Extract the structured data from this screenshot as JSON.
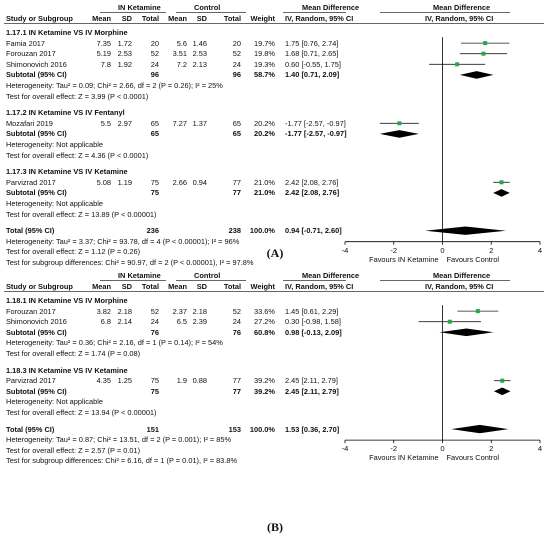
{
  "panels": [
    {
      "label": "(A)",
      "header": {
        "group1": "IN Ketamine",
        "group2": "Control",
        "md_title": "Mean Difference",
        "md_title_plot": "Mean Difference",
        "col_study": "Study or Subgroup",
        "col_mean1": "Mean",
        "col_sd1": "SD",
        "col_total1": "Total",
        "col_mean2": "Mean",
        "col_sd2": "SD",
        "col_total2": "Total",
        "col_weight": "Weight",
        "col_md": "IV, Random, 95% CI",
        "col_md_plot": "IV, Random, 95% CI"
      },
      "rows": [
        {
          "kind": "title",
          "text": "1.17.1 IN Ketamine VS IV Morphine"
        },
        {
          "kind": "study",
          "name": "Famia 2017",
          "m1": "7.35",
          "sd1": "1.72",
          "n1": "20",
          "m2": "5.6",
          "sd2": "1.46",
          "n2": "20",
          "w": "19.7%",
          "ci": "1.75 [0.76, 2.74]",
          "est": 1.75,
          "lo": 0.76,
          "hi": 2.74
        },
        {
          "kind": "study",
          "name": "Forouzan 2017",
          "m1": "5.19",
          "sd1": "2.53",
          "n1": "52",
          "m2": "3.51",
          "sd2": "2.53",
          "n2": "52",
          "w": "19.8%",
          "ci": "1.68 [0.71, 2.65]",
          "est": 1.68,
          "lo": 0.71,
          "hi": 2.65
        },
        {
          "kind": "study",
          "name": "Shimonovich 2016",
          "m1": "7.8",
          "sd1": "1.92",
          "n1": "24",
          "m2": "7.2",
          "sd2": "2.13",
          "n2": "24",
          "w": "19.3%",
          "ci": "0.60 [-0.55, 1.75]",
          "est": 0.6,
          "lo": -0.55,
          "hi": 1.75
        },
        {
          "kind": "subtotal",
          "name": "Subtotal (95% CI)",
          "n1": "96",
          "n2": "96",
          "w": "58.7%",
          "ci": "1.40 [0.71, 2.09]",
          "est": 1.4,
          "lo": 0.71,
          "hi": 2.09
        },
        {
          "kind": "note",
          "text": "Heterogeneity: Tau² = 0.09; Chi² = 2.66, df = 2 (P = 0.26); I² = 25%"
        },
        {
          "kind": "note",
          "text": "Test for overall effect: Z = 3.99 (P < 0.0001)"
        },
        {
          "kind": "gap"
        },
        {
          "kind": "title",
          "text": "1.17.2 IN Ketamine VS IV Fentanyl"
        },
        {
          "kind": "study",
          "name": "Mozafari 2019",
          "m1": "5.5",
          "sd1": "2.97",
          "n1": "65",
          "m2": "7.27",
          "sd2": "1.37",
          "n2": "65",
          "w": "20.2%",
          "ci": "-1.77 [-2.57, -0.97]",
          "est": -1.77,
          "lo": -2.57,
          "hi": -0.97
        },
        {
          "kind": "subtotal",
          "name": "Subtotal (95% CI)",
          "n1": "65",
          "n2": "65",
          "w": "20.2%",
          "ci": "-1.77 [-2.57, -0.97]",
          "est": -1.77,
          "lo": -2.57,
          "hi": -0.97
        },
        {
          "kind": "note",
          "text": "Heterogeneity: Not applicable"
        },
        {
          "kind": "note",
          "text": "Test for overall effect: Z = 4.36 (P < 0.0001)"
        },
        {
          "kind": "gap"
        },
        {
          "kind": "title",
          "text": "1.17.3 IN Ketamine VS IV Ketamine"
        },
        {
          "kind": "study",
          "name": "Parvizrad 2017",
          "m1": "5.08",
          "sd1": "1.19",
          "n1": "75",
          "m2": "2.66",
          "sd2": "0.94",
          "n2": "77",
          "w": "21.0%",
          "ci": "2.42 [2.08, 2.76]",
          "est": 2.42,
          "lo": 2.08,
          "hi": 2.76
        },
        {
          "kind": "subtotal",
          "name": "Subtotal (95% CI)",
          "n1": "75",
          "n2": "77",
          "w": "21.0%",
          "ci": "2.42 [2.08, 2.76]",
          "est": 2.42,
          "lo": 2.08,
          "hi": 2.76
        },
        {
          "kind": "note",
          "text": "Heterogeneity: Not applicable"
        },
        {
          "kind": "note",
          "text": "Test for overall effect: Z = 13.89 (P < 0.00001)"
        },
        {
          "kind": "gap"
        },
        {
          "kind": "total",
          "name": "Total (95% CI)",
          "n1": "236",
          "n2": "238",
          "w": "100.0%",
          "ci": "0.94 [-0.71, 2.60]",
          "est": 0.94,
          "lo": -0.71,
          "hi": 2.6
        },
        {
          "kind": "note",
          "text": "Heterogeneity: Tau² = 3.37; Chi² = 93.78, df = 4 (P < 0.00001); I² = 96%"
        },
        {
          "kind": "note",
          "text": "Test for overall effect: Z = 1.12 (P = 0.26)"
        },
        {
          "kind": "note",
          "text": "Test for subgroup differences: Chi² = 90.97, df = 2 (P < 0.00001), I² = 97.8%"
        }
      ],
      "axis": {
        "ticks": [
          "-4",
          "-2",
          "0",
          "2",
          "4"
        ],
        "favours_left": "Favours IN Ketamine",
        "favours_right": "Favours Control"
      }
    },
    {
      "label": "(B)",
      "header": {
        "group1": "IN Ketamine",
        "group2": "Control",
        "md_title": "Mean Difference",
        "md_title_plot": "Mean Difference",
        "col_study": "Study or Subgroup",
        "col_mean1": "Mean",
        "col_sd1": "SD",
        "col_total1": "Total",
        "col_mean2": "Mean",
        "col_sd2": "SD",
        "col_total2": "Total",
        "col_weight": "Weight",
        "col_md": "IV, Random, 95% CI",
        "col_md_plot": "IV, Random, 95% CI"
      },
      "rows": [
        {
          "kind": "title",
          "text": "1.18.1 IN Ketamine VS IV Morphine"
        },
        {
          "kind": "study",
          "name": "Forouzan 2017",
          "m1": "3.82",
          "sd1": "2.18",
          "n1": "52",
          "m2": "2.37",
          "sd2": "2.18",
          "n2": "52",
          "w": "33.6%",
          "ci": "1.45 [0.61, 2.29]",
          "est": 1.45,
          "lo": 0.61,
          "hi": 2.29
        },
        {
          "kind": "study",
          "name": "Shimonovich 2016",
          "m1": "6.8",
          "sd1": "2.14",
          "n1": "24",
          "m2": "6.5",
          "sd2": "2.39",
          "n2": "24",
          "w": "27.2%",
          "ci": "0.30 [-0.98, 1.58]",
          "est": 0.3,
          "lo": -0.98,
          "hi": 1.58
        },
        {
          "kind": "subtotal",
          "name": "Subtotal (95% CI)",
          "n1": "76",
          "n2": "76",
          "w": "60.8%",
          "ci": "0.98 [-0.13, 2.09]",
          "est": 0.98,
          "lo": -0.13,
          "hi": 2.09
        },
        {
          "kind": "note",
          "text": "Heterogeneity: Tau² = 0.36; Chi² = 2.16, df = 1 (P = 0.14); I² = 54%"
        },
        {
          "kind": "note",
          "text": "Test for overall effect: Z = 1.74 (P = 0.08)"
        },
        {
          "kind": "gap"
        },
        {
          "kind": "title",
          "text": "1.18.3 IN Ketamine VS IV Ketamine"
        },
        {
          "kind": "study",
          "name": "Parvizrad 2017",
          "m1": "4.35",
          "sd1": "1.25",
          "n1": "75",
          "m2": "1.9",
          "sd2": "0.88",
          "n2": "77",
          "w": "39.2%",
          "ci": "2.45 [2.11, 2.79]",
          "est": 2.45,
          "lo": 2.11,
          "hi": 2.79
        },
        {
          "kind": "subtotal",
          "name": "Subtotal (95% CI)",
          "n1": "75",
          "n2": "77",
          "w": "39.2%",
          "ci": "2.45 [2.11, 2.79]",
          "est": 2.45,
          "lo": 2.11,
          "hi": 2.79
        },
        {
          "kind": "note",
          "text": "Heterogeneity: Not applicable"
        },
        {
          "kind": "note",
          "text": "Test for overall effect: Z = 13.94 (P < 0.00001)"
        },
        {
          "kind": "gap"
        },
        {
          "kind": "total",
          "name": "Total (95% CI)",
          "n1": "151",
          "n2": "153",
          "w": "100.0%",
          "ci": "1.53 [0.36, 2.70]",
          "est": 1.53,
          "lo": 0.36,
          "hi": 2.7
        },
        {
          "kind": "note",
          "text": "Heterogeneity: Tau² = 0.87; Chi² = 13.51, df = 2 (P = 0.001); I² = 85%"
        },
        {
          "kind": "note",
          "text": "Test for overall effect: Z = 2.57 (P = 0.01)"
        },
        {
          "kind": "note",
          "text": "Test for subgroup differences: Chi² = 6.16, df = 1 (P = 0.01), I² = 83.8%"
        }
      ],
      "axis": {
        "ticks": [
          "-4",
          "-2",
          "0",
          "2",
          "4"
        ],
        "favours_left": "Favours IN Ketamine",
        "favours_right": "Favours Control"
      }
    }
  ],
  "colors": {
    "marker": "#22a84a",
    "diamond": "#000000",
    "ci_line": "#222222"
  }
}
